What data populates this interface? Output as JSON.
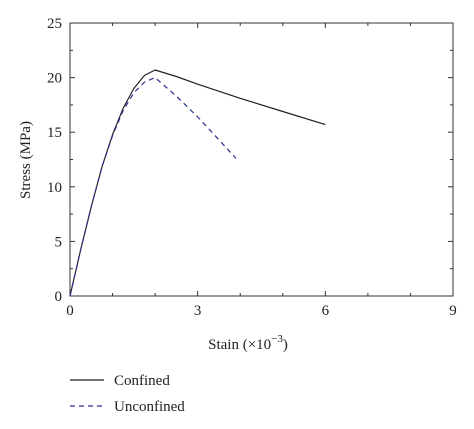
{
  "chart_data": {
    "type": "line",
    "title": "",
    "xlabel": "Stain (×10",
    "xlabel_sup": "−3",
    "xlabel_close": ")",
    "ylabel": "Stress (MPa)",
    "xlim": [
      0,
      9
    ],
    "ylim": [
      0,
      25
    ],
    "xticks": [
      0,
      3,
      6,
      9
    ],
    "yticks": [
      0,
      5,
      10,
      15,
      20,
      25
    ],
    "x_minor_step": 1,
    "y_minor_step": 2.5,
    "grid": false,
    "legend_position": "bottom-left",
    "series": [
      {
        "name": "Confined",
        "style": "solid",
        "color": "#222222",
        "points": [
          [
            0,
            0
          ],
          [
            0.25,
            4.2
          ],
          [
            0.5,
            8.2
          ],
          [
            0.75,
            11.8
          ],
          [
            1.0,
            14.8
          ],
          [
            1.25,
            17.2
          ],
          [
            1.5,
            19.0
          ],
          [
            1.75,
            20.2
          ],
          [
            2.0,
            20.7
          ],
          [
            2.5,
            20.1
          ],
          [
            3.0,
            19.4
          ],
          [
            4.0,
            18.1
          ],
          [
            5.0,
            16.9
          ],
          [
            6.0,
            15.7
          ]
        ]
      },
      {
        "name": "Unconfined",
        "style": "dashed",
        "color": "#2b2f8f",
        "points": [
          [
            0,
            0
          ],
          [
            0.25,
            4.2
          ],
          [
            0.5,
            8.2
          ],
          [
            0.75,
            11.8
          ],
          [
            1.0,
            14.7
          ],
          [
            1.25,
            17.0
          ],
          [
            1.5,
            18.6
          ],
          [
            1.75,
            19.6
          ],
          [
            2.0,
            20.0
          ],
          [
            2.5,
            18.3
          ],
          [
            3.0,
            16.4
          ],
          [
            3.5,
            14.3
          ],
          [
            3.9,
            12.6
          ]
        ]
      }
    ]
  }
}
